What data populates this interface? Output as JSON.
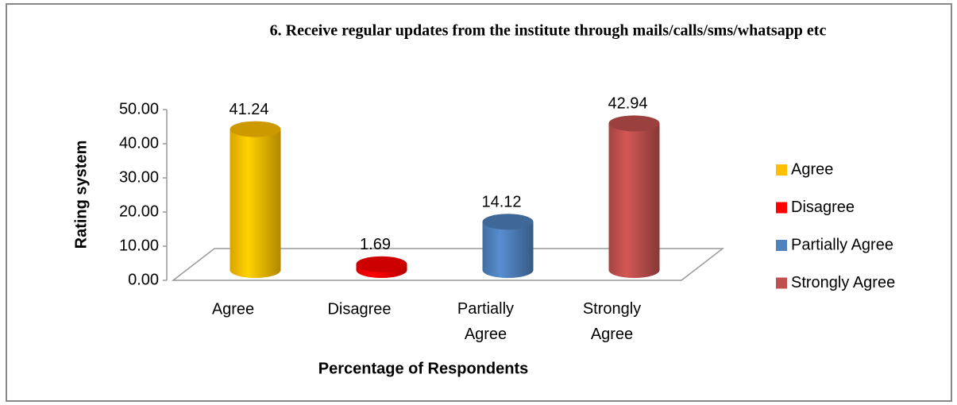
{
  "chart_data": {
    "type": "bar3d",
    "title": "6. Receive regular updates from the institute through mails/calls/sms/whatsapp etc",
    "x_label": "Percentage of Respondents",
    "y_label": "Rating system",
    "categories": [
      "Agree",
      "Disagree",
      "Partially Agree",
      "Strongly Agree"
    ],
    "values": [
      41.24,
      1.69,
      14.12,
      42.94
    ],
    "colors": [
      "#ffc000",
      "#ff0000",
      "#4f81bd",
      "#c0504d"
    ],
    "ylim": [
      0,
      50
    ],
    "yticks": [
      {
        "value": 0,
        "label": "0.00"
      },
      {
        "value": 10,
        "label": "10.00"
      },
      {
        "value": 20,
        "label": "20.00"
      },
      {
        "value": 30,
        "label": "30.00"
      },
      {
        "value": 40,
        "label": "40.00"
      },
      {
        "value": 50,
        "label": "50.00"
      }
    ],
    "legend": "right"
  }
}
